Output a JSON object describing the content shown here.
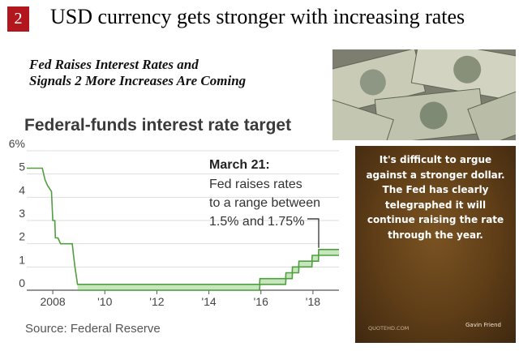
{
  "slide": {
    "number": "2",
    "title": "USD currency gets stronger with increasing rates"
  },
  "article": {
    "headline_line1": "Fed Raises Interest Rates and",
    "headline_line2": "Signals 2 More Increases Are Coming"
  },
  "quote": {
    "text": "It's difficult to argue against a stronger dollar. The Fed has clearly telegraphed it will continue raising the rate through the year.",
    "author": "Gavin Friend",
    "site": "QUOTEHD.COM"
  },
  "chart_data": {
    "type": "line",
    "title": "Federal-funds interest rate target",
    "source": "Source: Federal Reserve",
    "ylim": [
      0,
      6
    ],
    "yticks": [
      "6%",
      "5",
      "4",
      "3",
      "2",
      "1",
      "0"
    ],
    "xlim": [
      2007.0,
      2019.0
    ],
    "xticks": [
      "2008",
      "'10",
      "'12",
      "'14",
      "'16",
      "'18"
    ],
    "grid": "horizontal",
    "annotation": {
      "title": "March 21:",
      "line1": "Fed raises rates",
      "line2": "to a range between",
      "line3": "1.5% and 1.75%"
    },
    "series": [
      {
        "upper": [
          [
            2007.0,
            5.25
          ],
          [
            2007.6,
            5.25
          ],
          [
            2007.7,
            4.75
          ],
          [
            2007.8,
            4.5
          ],
          [
            2007.95,
            4.25
          ],
          [
            2008.0,
            3.0
          ],
          [
            2008.08,
            3.0
          ],
          [
            2008.1,
            2.25
          ],
          [
            2008.2,
            2.25
          ],
          [
            2008.3,
            2.0
          ],
          [
            2008.75,
            2.0
          ],
          [
            2008.8,
            1.5
          ],
          [
            2008.85,
            1.0
          ],
          [
            2008.95,
            0.25
          ],
          [
            2015.95,
            0.25
          ],
          [
            2015.96,
            0.5
          ],
          [
            2016.95,
            0.5
          ],
          [
            2016.96,
            0.75
          ],
          [
            2017.2,
            0.75
          ],
          [
            2017.21,
            1.0
          ],
          [
            2017.45,
            1.0
          ],
          [
            2017.46,
            1.25
          ],
          [
            2017.96,
            1.25
          ],
          [
            2017.97,
            1.5
          ],
          [
            2018.21,
            1.5
          ],
          [
            2018.22,
            1.75
          ],
          [
            2019.0,
            1.75
          ]
        ],
        "lower": [
          [
            2008.95,
            0.0
          ],
          [
            2015.95,
            0.0
          ],
          [
            2015.96,
            0.25
          ],
          [
            2016.95,
            0.25
          ],
          [
            2016.96,
            0.5
          ],
          [
            2017.2,
            0.5
          ],
          [
            2017.21,
            0.75
          ],
          [
            2017.45,
            0.75
          ],
          [
            2017.46,
            1.0
          ],
          [
            2017.96,
            1.0
          ],
          [
            2017.97,
            1.25
          ],
          [
            2018.21,
            1.25
          ],
          [
            2018.22,
            1.5
          ],
          [
            2019.0,
            1.5
          ]
        ]
      }
    ]
  }
}
